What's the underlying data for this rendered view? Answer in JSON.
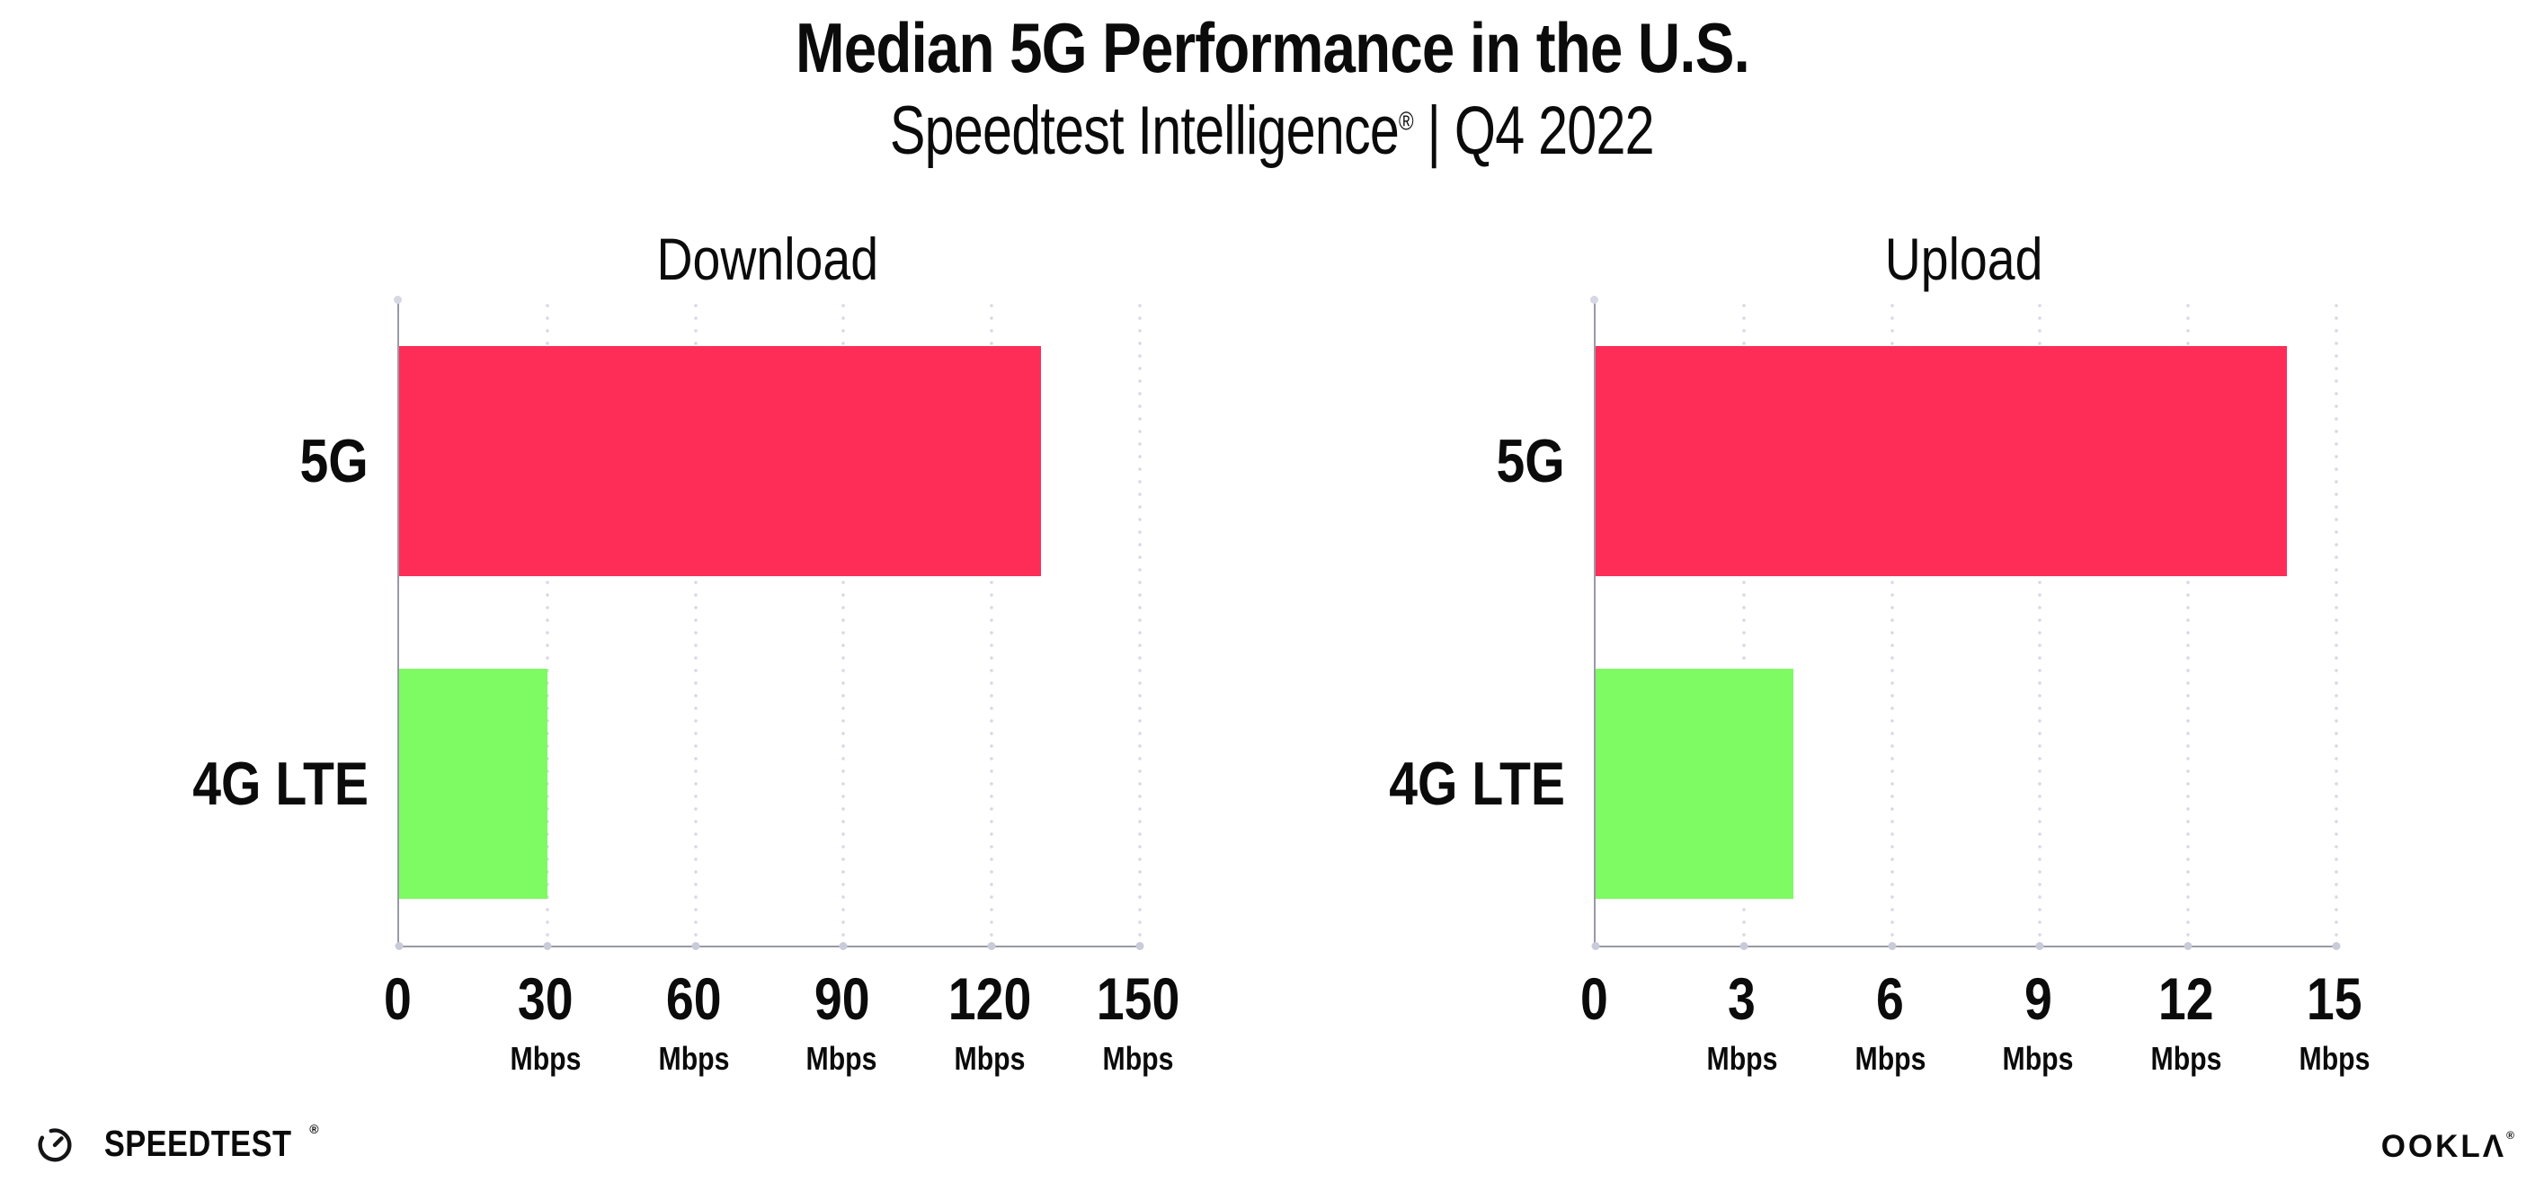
{
  "header": {
    "title": "Median 5G Performance in the U.S.",
    "subtitle_brand": "Speedtest Intelligence",
    "subtitle_reg": "®",
    "subtitle_rest": " | Q4 2022"
  },
  "footer": {
    "speedtest_label": "SPEEDTEST",
    "speedtest_reg": "®",
    "ookla_label": "OOKLΛ",
    "ookla_reg": "®"
  },
  "colors": {
    "bar_5g": "#FD2D58",
    "bar_4g_lte": "#7EFA63",
    "axis": "#989AA4",
    "gridline_dots": "#D7D8E4",
    "tick_dots": "#C9CBD8",
    "text": "#0B0B0C"
  },
  "chart_data": [
    {
      "type": "bar",
      "orientation": "horizontal",
      "title": "Download",
      "categories": [
        "5G",
        "4G LTE"
      ],
      "values": [
        130,
        30
      ],
      "unit": "Mbps",
      "xlim": [
        0,
        150
      ],
      "xticks": [
        0,
        30,
        60,
        90,
        120,
        150
      ],
      "xtick_unit": "Mbps",
      "bar_colors": [
        "#FD2D58",
        "#7EFA63"
      ],
      "grid": "vertical-dotted",
      "legend": "none"
    },
    {
      "type": "bar",
      "orientation": "horizontal",
      "title": "Upload",
      "categories": [
        "5G",
        "4G LTE"
      ],
      "values": [
        14,
        4
      ],
      "unit": "Mbps",
      "xlim": [
        0,
        15
      ],
      "xticks": [
        0,
        3,
        6,
        9,
        12,
        15
      ],
      "xtick_unit": "Mbps",
      "bar_colors": [
        "#FD2D58",
        "#7EFA63"
      ],
      "grid": "vertical-dotted",
      "legend": "none"
    }
  ]
}
